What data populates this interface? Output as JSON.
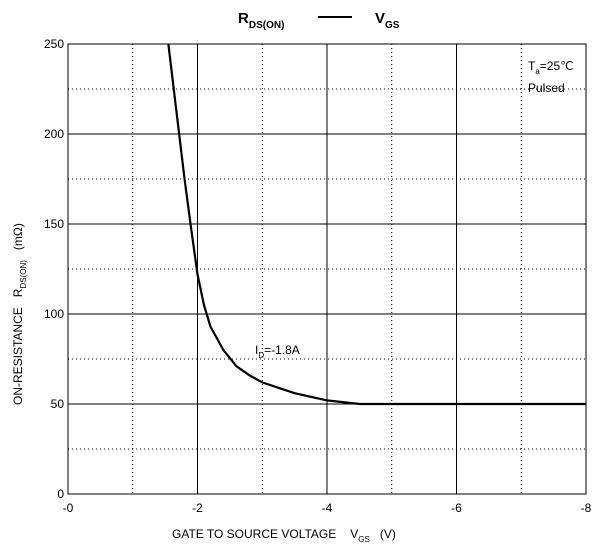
{
  "chart_data": {
    "type": "line",
    "title": [
      {
        "text": "R",
        "sub": "DS(ON)"
      },
      {
        "text": "V",
        "sub": "GS"
      }
    ],
    "x_label": {
      "text": "GATE TO SOURCE VOLTAGE",
      "symbol": "V",
      "sub": "GS",
      "unit": "(V)"
    },
    "y_label": {
      "text": "ON-RESISTANCE",
      "symbol": "R",
      "sub": "DS(ON)",
      "unit": "(mΩ)"
    },
    "annotations": [
      {
        "text": "T",
        "sub": "a",
        "rest": "=25℃"
      },
      {
        "text": "Pulsed"
      },
      {
        "text": "I",
        "sub": "D",
        "rest": "=-1.8A"
      }
    ],
    "x": [
      -1.55,
      -1.7,
      -1.8,
      -1.9,
      -2,
      -2.1,
      -2.2,
      -2.4,
      -2.6,
      -2.8,
      -3,
      -3.5,
      -4,
      -4.5,
      -5,
      -6,
      -7,
      -8
    ],
    "values": [
      250,
      205,
      175,
      148,
      122,
      105,
      93,
      80,
      71,
      66,
      62,
      56,
      52,
      50,
      50,
      50,
      50,
      50
    ],
    "color": "#000000",
    "xlim": [
      0,
      -8
    ],
    "xticks": [
      {
        "value": 0,
        "label": "-0"
      },
      -2,
      -4,
      -6,
      -8
    ],
    "xminor": [
      -1,
      -3,
      -5,
      -7
    ],
    "ylim": [
      0,
      250
    ],
    "yticks": [
      0,
      50,
      100,
      150,
      200,
      250
    ],
    "yminor": [
      25,
      75,
      125,
      175,
      225
    ],
    "grid": true
  }
}
